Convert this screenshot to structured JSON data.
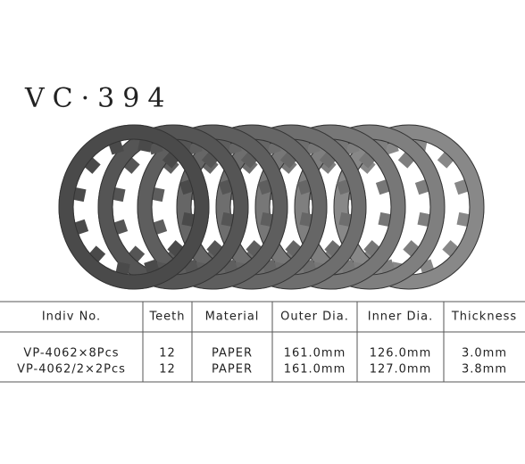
{
  "title": "VC·394",
  "table": {
    "header": [
      "Indiv No.",
      "Teeth",
      "Material",
      "Outer Dia.",
      "Inner Dia.",
      "Thickness"
    ],
    "rows": [
      [
        "VP-4062×8Pcs",
        "12",
        "PAPER",
        "161.0mm",
        "126.0mm",
        "3.0mm"
      ],
      [
        "VP-4062/2×2Pcs",
        "12",
        "PAPER",
        "161.0mm",
        "127.0mm",
        "3.8mm"
      ]
    ]
  }
}
